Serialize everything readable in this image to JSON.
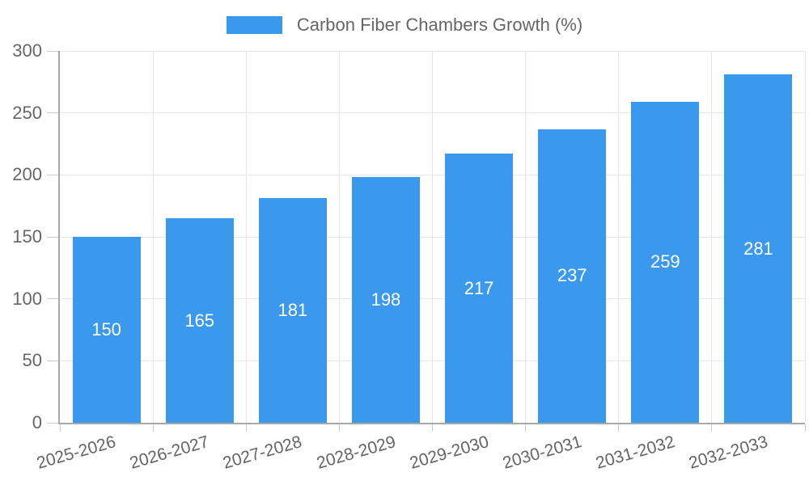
{
  "legend": {
    "label": "Carbon Fiber Chambers Growth (%)"
  },
  "colors": {
    "bar": "#3a99ec",
    "bar_label_text": "#ffffff",
    "axis_text": "#666666",
    "gridline": "#e6e6e6",
    "axis_line": "#a8a8a8",
    "tick_mark": "#cccccc",
    "background": "#ffffff"
  },
  "chart_data": {
    "type": "bar",
    "title": "Carbon Fiber Chambers Growth (%)",
    "categories": [
      "2025-2026",
      "2026-2027",
      "2027-2028",
      "2028-2029",
      "2029-2030",
      "2030-2031",
      "2031-2032",
      "2032-2033"
    ],
    "values": [
      150,
      165,
      181,
      198,
      217,
      237,
      259,
      281
    ],
    "value_labels": [
      "150",
      "165",
      "181",
      "198",
      "217",
      "237",
      "259",
      "281"
    ],
    "value_label_position": "inside-center",
    "xlabel": "",
    "ylabel": "",
    "ylim": [
      0,
      300
    ],
    "yticks": [
      0,
      50,
      100,
      150,
      200,
      250,
      300
    ],
    "xtick_rotation_deg": -16,
    "grid": true,
    "legend_position": "top-center"
  }
}
